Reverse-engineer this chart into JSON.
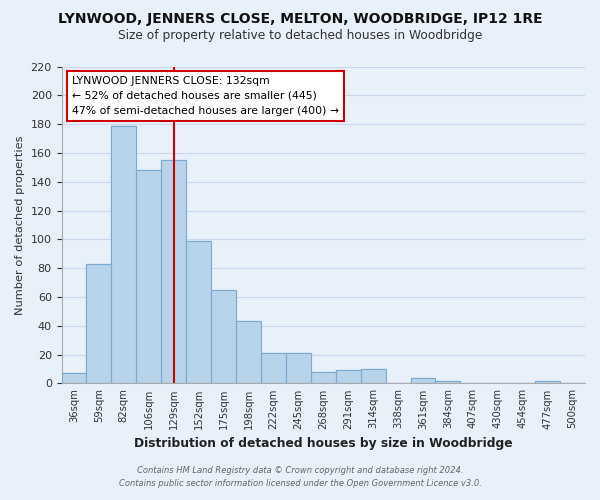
{
  "title": "LYNWOOD, JENNERS CLOSE, MELTON, WOODBRIDGE, IP12 1RE",
  "subtitle": "Size of property relative to detached houses in Woodbridge",
  "xlabel": "Distribution of detached houses by size in Woodbridge",
  "ylabel": "Number of detached properties",
  "bar_labels": [
    "36sqm",
    "59sqm",
    "82sqm",
    "106sqm",
    "129sqm",
    "152sqm",
    "175sqm",
    "198sqm",
    "222sqm",
    "245sqm",
    "268sqm",
    "291sqm",
    "314sqm",
    "338sqm",
    "361sqm",
    "384sqm",
    "407sqm",
    "430sqm",
    "454sqm",
    "477sqm",
    "500sqm"
  ],
  "bar_values": [
    7,
    83,
    179,
    148,
    155,
    99,
    65,
    43,
    21,
    21,
    8,
    9,
    10,
    0,
    4,
    2,
    0,
    0,
    0,
    2,
    0
  ],
  "bar_color": "#b8d4ea",
  "vline_color": "#cc0000",
  "vline_x": 4.5,
  "annotation_title": "LYNWOOD JENNERS CLOSE: 132sqm",
  "annotation_line1": "← 52% of detached houses are smaller (445)",
  "annotation_line2": "47% of semi-detached houses are larger (400) →",
  "ylim": [
    0,
    220
  ],
  "yticks": [
    0,
    20,
    40,
    60,
    80,
    100,
    120,
    140,
    160,
    180,
    200,
    220
  ],
  "footnote1": "Contains HM Land Registry data © Crown copyright and database right 2024.",
  "footnote2": "Contains public sector information licensed under the Open Government Licence v3.0.",
  "grid_color": "#c8d8ec",
  "background_color": "#e8f0fa"
}
